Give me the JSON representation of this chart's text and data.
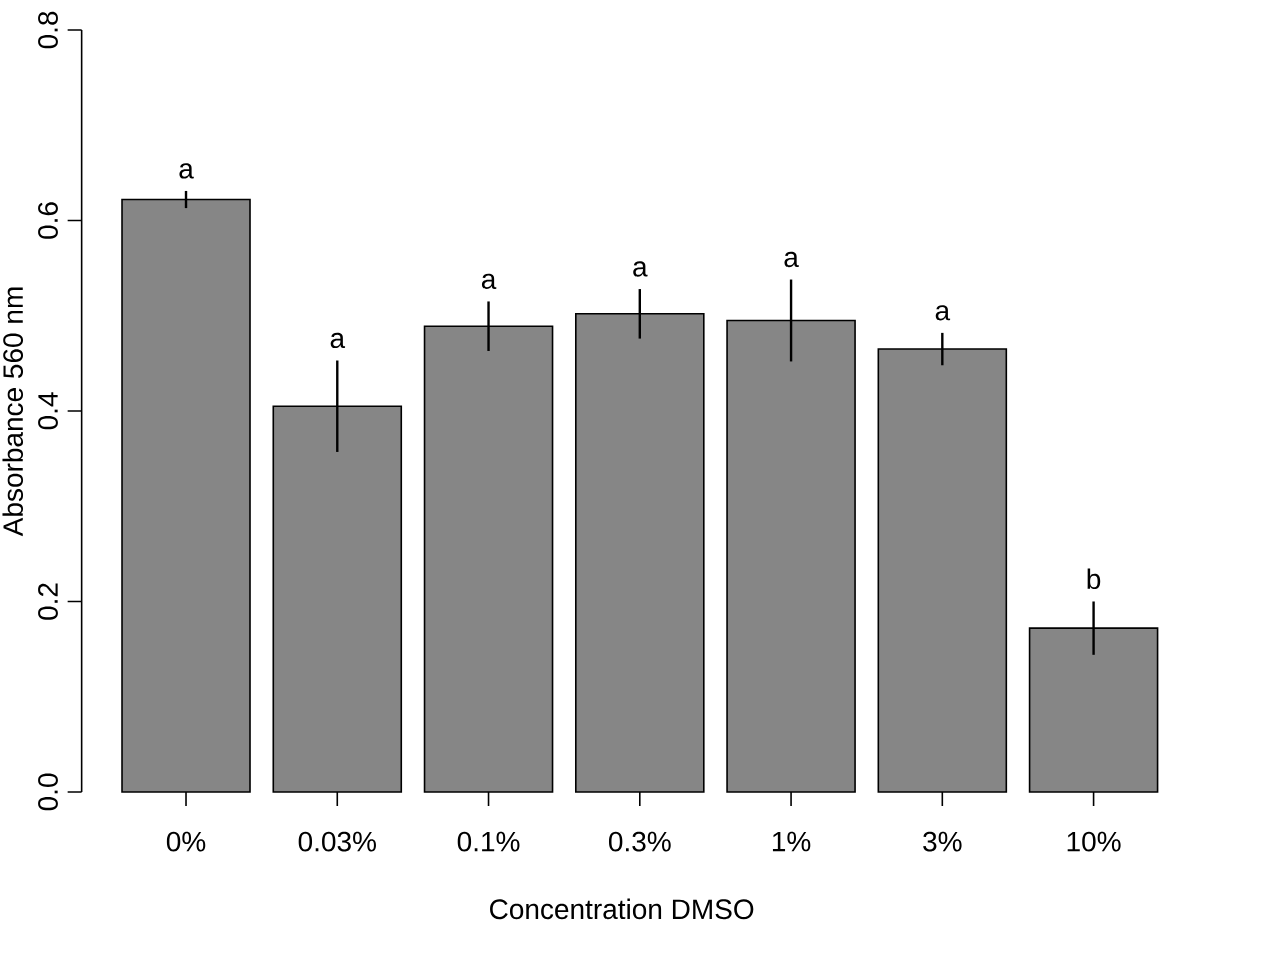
{
  "chart_data": {
    "type": "bar",
    "xlabel": "Concentration DMSO",
    "ylabel": "Absorbance 560 nm",
    "categories": [
      "0%",
      "0.03%",
      "0.1%",
      "0.3%",
      "1%",
      "3%",
      "10%"
    ],
    "values": [
      0.622,
      0.405,
      0.489,
      0.502,
      0.495,
      0.465,
      0.172
    ],
    "errors": [
      0.009,
      0.048,
      0.026,
      0.026,
      0.043,
      0.017,
      0.028
    ],
    "color": "#868686",
    "ylim": [
      0,
      0.8
    ],
    "yticks": [
      {
        "value": 0,
        "label": "0.0"
      },
      0.2,
      0.4,
      0.6,
      0.8
    ],
    "annotations": [
      "a",
      "a",
      "a",
      "a",
      "a",
      "a",
      "b"
    ]
  }
}
